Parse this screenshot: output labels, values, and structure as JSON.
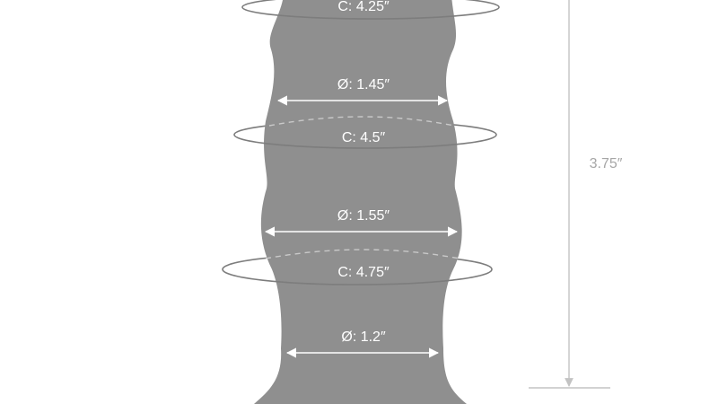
{
  "colors": {
    "background": "#ffffff",
    "silhouette": "#8f8f8f",
    "ring": "#7d7d7d",
    "arrow": "#ffffff",
    "dashed": "#c9c9c9",
    "label_on_shape": "#ffffff",
    "height_line": "#c3c3c3",
    "height_label": "#a6a6a6"
  },
  "measurements": {
    "circumference_top": "C: 4.25″",
    "diameter_upper": "Ø: 1.45″",
    "circumference_middle": "C: 4.5″",
    "diameter_middle": "Ø: 1.55″",
    "circumference_lower": "C: 4.75″",
    "diameter_neck": "Ø: 1.2″",
    "height": "3.75″"
  }
}
